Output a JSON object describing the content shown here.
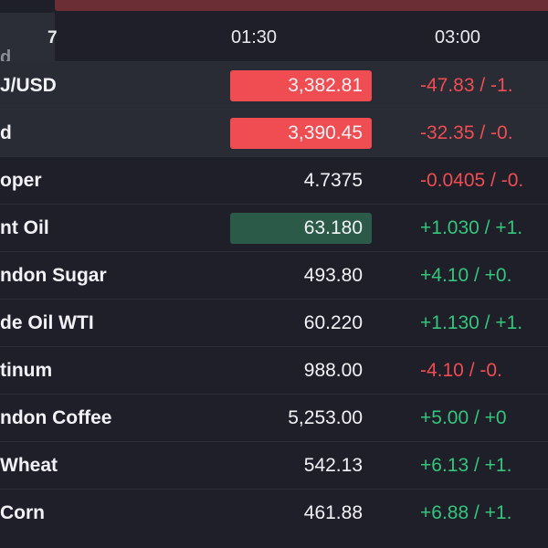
{
  "header": {
    "corner_top": "7",
    "corner_bottom": "d",
    "col_time_1": "01:30",
    "col_time_2": "03:00"
  },
  "colors": {
    "background": "#1e1f28",
    "negative": "#ef4d51",
    "positive": "#35c47c",
    "flash_up_bg": "#2c5a48",
    "flash_down_bg": "#ef4d51"
  },
  "rows": [
    {
      "name": "J/USD",
      "price": "3,382.81",
      "change": "-47.83 / -1.",
      "direction": "neg",
      "flash": "down",
      "highlight": true
    },
    {
      "name": "d",
      "price": "3,390.45",
      "change": "-32.35 / -0.",
      "direction": "neg",
      "flash": "down",
      "highlight": true
    },
    {
      "name": "oper",
      "price": "4.7375",
      "change": "-0.0405 / -0.",
      "direction": "neg",
      "flash": "",
      "highlight": false
    },
    {
      "name": "nt Oil",
      "price": "63.180",
      "change": "+1.030 / +1.",
      "direction": "pos",
      "flash": "up",
      "highlight": false
    },
    {
      "name": "ndon Sugar",
      "price": "493.80",
      "change": "+4.10 / +0.",
      "direction": "pos",
      "flash": "",
      "highlight": false
    },
    {
      "name": "de Oil WTI",
      "price": "60.220",
      "change": "+1.130 / +1.",
      "direction": "pos",
      "flash": "",
      "highlight": false
    },
    {
      "name": "tinum",
      "price": "988.00",
      "change": "-4.10 / -0.",
      "direction": "neg",
      "flash": "",
      "highlight": false
    },
    {
      "name": "ndon Coffee",
      "price": "5,253.00",
      "change": "+5.00 / +0",
      "direction": "pos",
      "flash": "",
      "highlight": false
    },
    {
      "name": "Wheat",
      "price": "542.13",
      "change": "+6.13 / +1.",
      "direction": "pos",
      "flash": "",
      "highlight": false
    },
    {
      "name": "Corn",
      "price": "461.88",
      "change": "+6.88 / +1.",
      "direction": "pos",
      "flash": "",
      "highlight": false
    }
  ]
}
